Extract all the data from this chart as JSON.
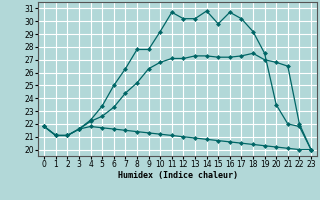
{
  "xlabel": "Humidex (Indice chaleur)",
  "xlim": [
    -0.5,
    23.5
  ],
  "ylim": [
    19.5,
    31.5
  ],
  "xticks": [
    0,
    1,
    2,
    3,
    4,
    5,
    6,
    7,
    8,
    9,
    10,
    11,
    12,
    13,
    14,
    15,
    16,
    17,
    18,
    19,
    20,
    21,
    22,
    23
  ],
  "yticks": [
    20,
    21,
    22,
    23,
    24,
    25,
    26,
    27,
    28,
    29,
    30,
    31
  ],
  "background_color": "#b2d8d8",
  "grid_color": "#ffffff",
  "line_color": "#006666",
  "line1_x": [
    0,
    1,
    2,
    3,
    4,
    5,
    6,
    7,
    8,
    9,
    10,
    11,
    12,
    13,
    14,
    15,
    16,
    17,
    18,
    19,
    20,
    21,
    22,
    23
  ],
  "line1_y": [
    21.8,
    21.1,
    21.1,
    21.6,
    21.8,
    21.7,
    21.6,
    21.5,
    21.4,
    21.3,
    21.2,
    21.1,
    21.0,
    20.9,
    20.8,
    20.7,
    20.6,
    20.5,
    20.4,
    20.3,
    20.2,
    20.1,
    20.0,
    20.0
  ],
  "line2_x": [
    0,
    1,
    2,
    3,
    4,
    5,
    6,
    7,
    8,
    9,
    10,
    11,
    12,
    13,
    14,
    15,
    16,
    17,
    18,
    19,
    20,
    21,
    22,
    23
  ],
  "line2_y": [
    21.8,
    21.1,
    21.1,
    21.6,
    22.2,
    22.6,
    23.3,
    24.4,
    25.2,
    26.3,
    26.8,
    27.1,
    27.1,
    27.3,
    27.3,
    27.2,
    27.2,
    27.3,
    27.5,
    27.0,
    26.8,
    26.5,
    22.0,
    20.0
  ],
  "line3_x": [
    0,
    1,
    2,
    3,
    4,
    5,
    6,
    7,
    8,
    9,
    10,
    11,
    12,
    13,
    14,
    15,
    16,
    17,
    18,
    19,
    20,
    21,
    22,
    23
  ],
  "line3_y": [
    21.8,
    21.1,
    21.1,
    21.6,
    22.3,
    23.4,
    25.0,
    26.3,
    27.8,
    27.8,
    29.2,
    30.7,
    30.2,
    30.2,
    30.8,
    29.8,
    30.7,
    30.2,
    29.2,
    27.5,
    23.5,
    22.0,
    21.8,
    20.0
  ],
  "marker": "D",
  "marker_size": 2.0
}
